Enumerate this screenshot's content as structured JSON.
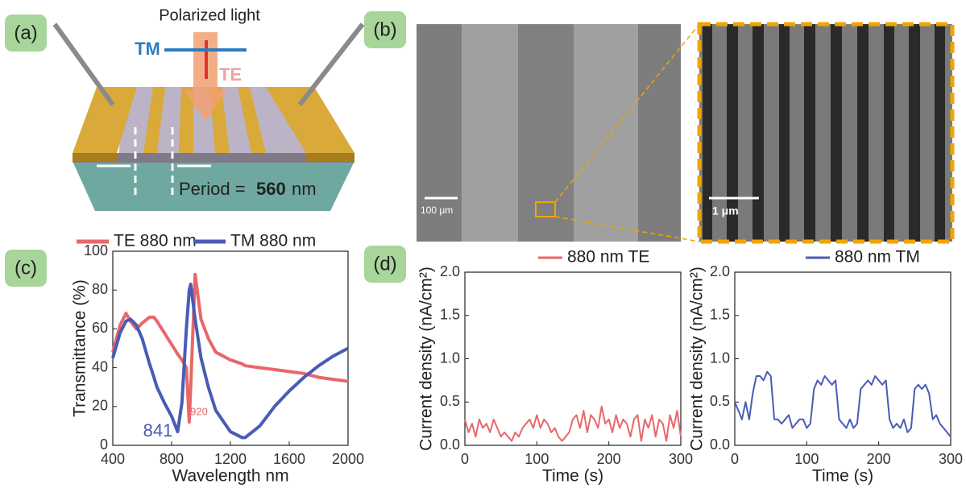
{
  "panel_labels": [
    "(a)",
    "(b)",
    "(c)",
    "(d)"
  ],
  "diagram": {
    "light": "Polarized light",
    "tm": "TM",
    "te": "TE",
    "period_prefix": "Period =",
    "period_value": "560",
    "period_unit": "nm"
  },
  "micrographs": {
    "left_scale": "100 μm",
    "right_scale": "1 μm"
  },
  "chart_data": [
    {
      "type": "line",
      "xlabel": "Wavelength nm",
      "ylabel": "Transmittance (%)",
      "x": [
        400,
        450,
        490,
        520,
        560,
        600,
        650,
        680,
        700,
        750,
        800,
        841,
        870,
        900,
        920,
        930,
        960,
        1000,
        1050,
        1100,
        1200,
        1280,
        1300,
        1400,
        1500,
        1600,
        1700,
        1800,
        1900,
        2000
      ],
      "series": [
        {
          "name": "TE 880 nm",
          "color": "#e8676a",
          "values": [
            48,
            62,
            68,
            64,
            60,
            63,
            66,
            66,
            64,
            58,
            52,
            47,
            44,
            40,
            12,
            30,
            88,
            65,
            55,
            48,
            44,
            42,
            41,
            40,
            39,
            38,
            37,
            35,
            34,
            33
          ]
        },
        {
          "name": "TM 880 nm",
          "color": "#4a5bb5",
          "values": [
            45,
            58,
            64,
            65,
            62,
            55,
            42,
            35,
            30,
            22,
            15,
            7,
            22,
            60,
            80,
            83,
            65,
            45,
            30,
            18,
            7,
            4,
            4,
            10,
            20,
            28,
            35,
            41,
            46,
            50
          ]
        }
      ],
      "xlim": [
        400,
        2000
      ],
      "xticks": [
        400,
        800,
        1200,
        1600,
        2000
      ],
      "ylim": [
        0,
        100
      ],
      "yticks": [
        0,
        20,
        40,
        60,
        80,
        100
      ],
      "annotations": [
        {
          "text": "841",
          "color": "#4a5bb5"
        },
        {
          "text": "920",
          "color": "#e8676a"
        }
      ]
    },
    {
      "type": "line",
      "xlabel": "Time (s)",
      "ylabel": "Current density (nA/cm²)",
      "x": [
        0,
        5,
        10,
        15,
        20,
        25,
        30,
        35,
        40,
        45,
        50,
        55,
        60,
        65,
        70,
        75,
        80,
        85,
        90,
        95,
        100,
        105,
        110,
        115,
        120,
        125,
        130,
        135,
        140,
        145,
        150,
        155,
        160,
        165,
        170,
        175,
        180,
        185,
        190,
        195,
        200,
        205,
        210,
        215,
        220,
        225,
        230,
        235,
        240,
        245,
        250,
        255,
        260,
        265,
        270,
        275,
        280,
        285,
        290,
        295,
        300
      ],
      "series": [
        {
          "name": "880 nm TE",
          "color": "#e8676a",
          "values": [
            0.3,
            0.15,
            0.25,
            0.1,
            0.3,
            0.2,
            0.25,
            0.15,
            0.3,
            0.2,
            0.1,
            0.15,
            0.1,
            0.05,
            0.15,
            0.1,
            0.2,
            0.25,
            0.3,
            0.2,
            0.35,
            0.2,
            0.3,
            0.25,
            0.15,
            0.2,
            0.1,
            0.05,
            0.1,
            0.15,
            0.3,
            0.35,
            0.2,
            0.4,
            0.15,
            0.35,
            0.3,
            0.2,
            0.45,
            0.25,
            0.3,
            0.15,
            0.35,
            0.2,
            0.3,
            0.25,
            0.1,
            0.3,
            0.35,
            0.05,
            0.3,
            0.2,
            0.35,
            0.1,
            0.3,
            0.25,
            0.05,
            0.35,
            0.2,
            0.4,
            0.1
          ]
        }
      ],
      "xlim": [
        0,
        300
      ],
      "xticks": [
        0,
        100,
        200,
        300
      ],
      "ylim": [
        0,
        2
      ],
      "yticks": [
        {
          "value": 0,
          "label": "0.0"
        },
        {
          "value": 0.5,
          "label": "0.5"
        },
        {
          "value": 1,
          "label": "1.0"
        },
        {
          "value": 1.5,
          "label": "1.5"
        },
        {
          "value": 2,
          "label": "2.0"
        }
      ]
    },
    {
      "type": "line",
      "xlabel": "Time (s)",
      "ylabel": "Current density (nA/cm²)",
      "x": [
        0,
        5,
        10,
        15,
        20,
        25,
        30,
        35,
        40,
        45,
        50,
        55,
        60,
        65,
        70,
        75,
        80,
        85,
        90,
        95,
        100,
        105,
        110,
        115,
        120,
        125,
        130,
        135,
        140,
        145,
        150,
        155,
        160,
        165,
        170,
        175,
        180,
        185,
        190,
        195,
        200,
        205,
        210,
        215,
        220,
        225,
        230,
        235,
        240,
        245,
        250,
        255,
        260,
        265,
        270,
        275,
        280,
        285,
        290,
        295,
        300
      ],
      "series": [
        {
          "name": "880 nm TM",
          "color": "#4a5bb5",
          "values": [
            0.5,
            0.4,
            0.3,
            0.5,
            0.3,
            0.6,
            0.8,
            0.8,
            0.75,
            0.85,
            0.8,
            0.3,
            0.3,
            0.25,
            0.3,
            0.35,
            0.2,
            0.25,
            0.3,
            0.3,
            0.2,
            0.25,
            0.65,
            0.75,
            0.7,
            0.8,
            0.75,
            0.7,
            0.75,
            0.3,
            0.25,
            0.2,
            0.3,
            0.2,
            0.25,
            0.65,
            0.7,
            0.75,
            0.7,
            0.8,
            0.75,
            0.7,
            0.75,
            0.3,
            0.2,
            0.25,
            0.2,
            0.3,
            0.15,
            0.2,
            0.65,
            0.7,
            0.65,
            0.7,
            0.6,
            0.3,
            0.35,
            0.25,
            0.2,
            0.15,
            0.1
          ]
        }
      ],
      "xlim": [
        0,
        300
      ],
      "xticks": [
        0,
        100,
        200,
        300
      ],
      "ylim": [
        0,
        2
      ],
      "yticks": [
        {
          "value": 0,
          "label": "0.0"
        },
        {
          "value": 0.5,
          "label": "0.5"
        },
        {
          "value": 1,
          "label": "1.0"
        },
        {
          "value": 1.5,
          "label": "1.5"
        },
        {
          "value": 2,
          "label": "2.0"
        }
      ]
    }
  ]
}
